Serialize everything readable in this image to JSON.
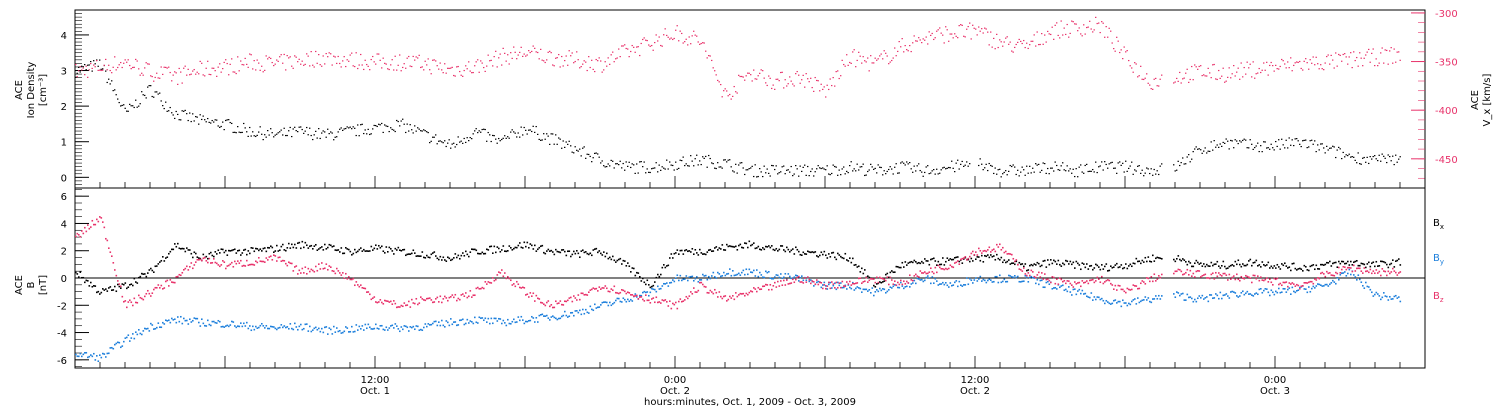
{
  "figure": {
    "xaxis_title": "hours:minutes, Oct.  1, 2009 - Oct.  3, 2009",
    "x_range_hours": [
      0,
      54
    ],
    "xticks": [
      {
        "h": 12,
        "time": "12:00",
        "date": "Oct. 1"
      },
      {
        "h": 24,
        "time": "0:00",
        "date": "Oct. 2"
      },
      {
        "h": 36,
        "time": "12:00",
        "date": "Oct. 2"
      },
      {
        "h": 48,
        "time": "0:00",
        "date": "Oct. 3"
      }
    ]
  },
  "colors": {
    "density": "#000000",
    "vx": "#e8336b",
    "bx": "#000000",
    "by": "#1f80dc",
    "bz": "#e8336b",
    "axis_right": "#e8336b"
  },
  "chart_data": [
    {
      "type": "scatter",
      "title": "",
      "ylabel_left": [
        "ACE",
        "Ion Density",
        "[cm⁻³]"
      ],
      "ylabel_right": [
        "ACE",
        "V_x [km/s]"
      ],
      "ylim_left": [
        -0.3,
        4.7
      ],
      "ylim_right": [
        -480,
        -297
      ],
      "yticks_left": [
        0,
        1,
        2,
        3,
        4
      ],
      "yticks_right": [
        -300,
        -350,
        -400,
        -450
      ],
      "series": [
        {
          "axis": "left",
          "x_hours": [
            0,
            1,
            2,
            3,
            4,
            5,
            6,
            7,
            8,
            9,
            10,
            11,
            12,
            13,
            14,
            15,
            16,
            17,
            18,
            19,
            20,
            21,
            22,
            23,
            24,
            25,
            26,
            27,
            28,
            29,
            30,
            31,
            32,
            33,
            34,
            35,
            36,
            37,
            38,
            39,
            40,
            41,
            42,
            43,
            44,
            45,
            46,
            47,
            48,
            49,
            50,
            51,
            52,
            53
          ],
          "values": [
            3.0,
            3.2,
            1.8,
            2.5,
            1.8,
            1.6,
            1.5,
            1.3,
            1.2,
            1.3,
            1.2,
            1.3,
            1.4,
            1.5,
            1.2,
            0.9,
            1.3,
            1.0,
            1.4,
            1.1,
            0.8,
            0.5,
            0.3,
            0.3,
            0.4,
            0.5,
            0.4,
            0.2,
            0.2,
            0.2,
            0.2,
            0.3,
            0.2,
            0.3,
            0.2,
            0.3,
            0.4,
            0.2,
            0.2,
            0.3,
            0.2,
            0.3,
            0.3,
            0.2,
            0.3,
            0.8,
            1.0,
            0.9,
            0.9,
            1.0,
            0.8,
            0.6,
            0.5,
            0.5
          ],
          "gaps_hours": [
            [
              35.8,
              36.1
            ],
            [
              43.5,
              43.9
            ],
            [
              53.6,
              54
            ]
          ]
        },
        {
          "axis": "right",
          "x_hours": [
            0,
            1,
            2,
            3,
            4,
            5,
            6,
            7,
            8,
            9,
            10,
            11,
            12,
            13,
            14,
            15,
            16,
            17,
            18,
            19,
            20,
            21,
            22,
            23,
            24,
            25,
            26,
            27,
            28,
            29,
            30,
            31,
            32,
            33,
            34,
            35,
            36,
            37,
            38,
            39,
            40,
            41,
            42,
            43,
            44,
            45,
            46,
            47,
            48,
            49,
            50,
            51,
            52,
            53
          ],
          "values": [
            -360,
            -355,
            -350,
            -360,
            -365,
            -358,
            -355,
            -350,
            -352,
            -348,
            -345,
            -348,
            -350,
            -350,
            -352,
            -358,
            -355,
            -345,
            -340,
            -345,
            -348,
            -352,
            -340,
            -330,
            -320,
            -328,
            -385,
            -360,
            -370,
            -365,
            -380,
            -345,
            -352,
            -335,
            -325,
            -320,
            -318,
            -330,
            -335,
            -318,
            -315,
            -312,
            -345,
            -370,
            -365,
            -360,
            -362,
            -358,
            -355,
            -352,
            -350,
            -348,
            -345,
            -342
          ],
          "gaps_hours": [
            [
              43.5,
              43.9
            ],
            [
              53.6,
              54
            ]
          ]
        }
      ]
    },
    {
      "type": "scatter",
      "title": "",
      "ylabel": [
        "ACE",
        "B",
        "[nT]"
      ],
      "ylim": [
        -6.6,
        6.6
      ],
      "yticks": [
        -6,
        -4,
        -2,
        0,
        2,
        4,
        6
      ],
      "reference_line_y": 0,
      "series": [
        {
          "name": "B_x",
          "x_hours": [
            0,
            1,
            2,
            3,
            4,
            5,
            6,
            7,
            8,
            9,
            10,
            11,
            12,
            13,
            14,
            15,
            16,
            17,
            18,
            19,
            20,
            21,
            22,
            23,
            24,
            25,
            26,
            27,
            28,
            29,
            30,
            31,
            32,
            33,
            34,
            35,
            36,
            37,
            38,
            39,
            40,
            41,
            42,
            43,
            44,
            45,
            46,
            47,
            48,
            49,
            50,
            51,
            52,
            53
          ],
          "values": [
            0.5,
            -1.0,
            -0.5,
            0.5,
            2.5,
            1.5,
            2.0,
            2.0,
            2.2,
            2.5,
            2.3,
            2.0,
            2.2,
            2.0,
            1.8,
            1.5,
            2.0,
            2.2,
            2.5,
            2.0,
            1.8,
            2.0,
            1.0,
            -0.5,
            2.0,
            2.0,
            2.3,
            2.5,
            2.2,
            2.0,
            1.8,
            1.5,
            -0.5,
            1.0,
            1.2,
            1.3,
            1.5,
            1.5,
            0.8,
            1.2,
            1.0,
            0.8,
            1.0,
            1.5,
            1.5,
            1.0,
            1.0,
            1.2,
            1.0,
            0.8,
            1.0,
            1.2,
            1.0,
            1.2
          ],
          "gaps_hours": [
            [
              43.5,
              43.9
            ],
            [
              53.6,
              54
            ]
          ]
        },
        {
          "name": "B_y",
          "x_hours": [
            0,
            1,
            2,
            3,
            4,
            5,
            6,
            7,
            8,
            9,
            10,
            11,
            12,
            13,
            14,
            15,
            16,
            17,
            18,
            19,
            20,
            21,
            22,
            23,
            24,
            25,
            26,
            27,
            28,
            29,
            30,
            31,
            32,
            33,
            34,
            35,
            36,
            37,
            38,
            39,
            40,
            41,
            42,
            43,
            44,
            45,
            46,
            47,
            48,
            49,
            50,
            51,
            52,
            53
          ],
          "values": [
            -5.5,
            -5.8,
            -4.5,
            -3.5,
            -3.0,
            -3.2,
            -3.3,
            -3.5,
            -3.6,
            -3.5,
            -3.8,
            -3.7,
            -3.5,
            -3.6,
            -3.5,
            -3.2,
            -3.0,
            -3.2,
            -3.0,
            -2.8,
            -2.5,
            -2.0,
            -1.5,
            -1.0,
            0.0,
            0.0,
            0.5,
            0.5,
            0.2,
            0.0,
            -0.5,
            -0.5,
            -1.0,
            -0.5,
            0.0,
            -0.5,
            0.0,
            0.0,
            0.0,
            -0.5,
            -1.0,
            -1.5,
            -1.8,
            -1.5,
            -1.2,
            -1.5,
            -1.2,
            -1.0,
            -1.0,
            -0.8,
            -0.5,
            0.5,
            -1.2,
            -1.5
          ],
          "gaps_hours": [
            [
              43.5,
              43.9
            ],
            [
              53.6,
              54
            ]
          ]
        },
        {
          "name": "B_z",
          "x_hours": [
            0,
            1,
            2,
            3,
            4,
            5,
            6,
            7,
            8,
            9,
            10,
            11,
            12,
            13,
            14,
            15,
            16,
            17,
            18,
            19,
            20,
            21,
            22,
            23,
            24,
            25,
            26,
            27,
            28,
            29,
            30,
            31,
            32,
            33,
            34,
            35,
            36,
            37,
            38,
            39,
            40,
            41,
            42,
            43,
            44,
            45,
            46,
            47,
            48,
            49,
            50,
            51,
            52,
            53
          ],
          "values": [
            3.0,
            4.5,
            -2.0,
            -1.0,
            0.0,
            1.5,
            1.0,
            1.2,
            1.5,
            0.5,
            1.0,
            0.0,
            -1.5,
            -2.0,
            -1.5,
            -1.5,
            -1.0,
            0.5,
            -1.0,
            -2.0,
            -1.5,
            -0.5,
            -1.0,
            -1.5,
            -2.0,
            -0.5,
            -1.5,
            -1.0,
            -0.5,
            0.0,
            -0.5,
            -0.3,
            0.0,
            -0.3,
            0.5,
            1.0,
            2.0,
            2.3,
            0.5,
            0.0,
            -0.5,
            0.0,
            -1.0,
            0.0,
            0.5,
            0.3,
            0.2,
            0.0,
            -0.2,
            -0.5,
            0.3,
            0.8,
            0.5,
            0.5
          ],
          "gaps_hours": [
            [
              43.5,
              43.9
            ],
            [
              53.6,
              54
            ]
          ]
        }
      ]
    }
  ]
}
